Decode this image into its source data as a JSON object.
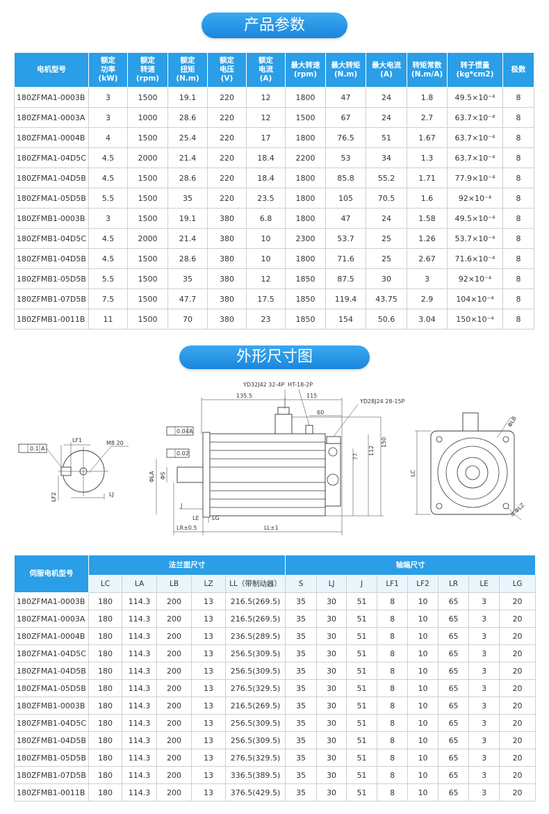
{
  "section1": {
    "title": "产品参数"
  },
  "table1": {
    "headers": [
      "电机型号",
      "额定\n功率\n(kW)",
      "额定\n转速\n(rpm)",
      "额定\n扭矩\n(N.m)",
      "额定\n电压\n(V)",
      "额定\n电流\n(A)",
      "最大转速\n(rpm)",
      "最大转矩\n(N.m)",
      "最大电流\n(A)",
      "转矩常数\n(N.m/A)",
      "转子惯量\n(kg*cm2)",
      "极数"
    ],
    "rows": [
      [
        "180ZFMA1-0003B",
        "3",
        "1500",
        "19.1",
        "220",
        "12",
        "1800",
        "47",
        "24",
        "1.8",
        "49.5×10⁻⁴",
        "8"
      ],
      [
        "180ZFMA1-0003A",
        "3",
        "1000",
        "28.6",
        "220",
        "12",
        "1500",
        "67",
        "24",
        "2.7",
        "63.7×10⁻⁴",
        "8"
      ],
      [
        "180ZFMA1-0004B",
        "4",
        "1500",
        "25.4",
        "220",
        "17",
        "1800",
        "76.5",
        "51",
        "1.67",
        "63.7×10⁻⁴",
        "8"
      ],
      [
        "180ZFMA1-04D5C",
        "4.5",
        "2000",
        "21.4",
        "220",
        "18.4",
        "2200",
        "53",
        "34",
        "1.3",
        "63.7×10⁻⁴",
        "8"
      ],
      [
        "180ZFMA1-04D5B",
        "4.5",
        "1500",
        "28.6",
        "220",
        "18.4",
        "1800",
        "85.8",
        "55.2",
        "1.71",
        "77.9×10⁻⁴",
        "8"
      ],
      [
        "180ZFMA1-05D5B",
        "5.5",
        "1500",
        "35",
        "220",
        "23.5",
        "1800",
        "105",
        "70.5",
        "1.6",
        "92×10⁻⁴",
        "8"
      ],
      [
        "180ZFMB1-0003B",
        "3",
        "1500",
        "19.1",
        "380",
        "6.8",
        "1800",
        "47",
        "24",
        "1.58",
        "49.5×10⁻⁴",
        "8"
      ],
      [
        "180ZFMB1-04D5C",
        "4.5",
        "2000",
        "21.4",
        "380",
        "10",
        "2300",
        "53.7",
        "25",
        "1.26",
        "53.7×10⁻⁴",
        "8"
      ],
      [
        "180ZFMB1-04D5B",
        "4.5",
        "1500",
        "28.6",
        "380",
        "10",
        "1800",
        "71.6",
        "25",
        "2.67",
        "71.6×10⁻⁴",
        "8"
      ],
      [
        "180ZFMB1-05D5B",
        "5.5",
        "1500",
        "35",
        "380",
        "12",
        "1850",
        "87.5",
        "30",
        "3",
        "92×10⁻⁴",
        "8"
      ],
      [
        "180ZFMB1-07D5B",
        "7.5",
        "1500",
        "47.7",
        "380",
        "17.5",
        "1850",
        "119.4",
        "43.75",
        "2.9",
        "104×10⁻⁴",
        "8"
      ],
      [
        "180ZFMB1-0011B",
        "11",
        "1500",
        "70",
        "380",
        "23",
        "1850",
        "154",
        "50.6",
        "3.04",
        "150×10⁻⁴",
        "8"
      ]
    ]
  },
  "section2": {
    "title": "外形尺寸图"
  },
  "drawing": {
    "labels": [
      "YD32J42 32-4P",
      "HT-18-2P",
      "YD28J24 28-15P",
      "135.5",
      "115",
      "60",
      "150",
      "112",
      "77",
      "LE",
      "LG",
      "LR±0.5",
      "LL±1",
      "J",
      "ΦLA",
      "ΦS",
      "0.04",
      "A",
      "0.02",
      "LF1",
      "M8 20",
      "0.1",
      "A",
      "LF2",
      "LJ",
      "ΦLB",
      "LC",
      "4-ΦLZ"
    ]
  },
  "table2": {
    "model_header": "伺服电机型号",
    "groups": [
      "法兰面尺寸",
      "轴端尺寸"
    ],
    "headers": [
      "LC",
      "LA",
      "LB",
      "LZ",
      "LL（带制动器）",
      "S",
      "LJ",
      "J",
      "LF1",
      "LF2",
      "LR",
      "LE",
      "LG"
    ],
    "rows": [
      [
        "180ZFMA1-0003B",
        "180",
        "114.3",
        "200",
        "13",
        "216.5(269.5)",
        "35",
        "30",
        "51",
        "8",
        "10",
        "65",
        "3",
        "20"
      ],
      [
        "180ZFMA1-0003A",
        "180",
        "114.3",
        "200",
        "13",
        "216.5(269.5)",
        "35",
        "30",
        "51",
        "8",
        "10",
        "65",
        "3",
        "20"
      ],
      [
        "180ZFMA1-0004B",
        "180",
        "114.3",
        "200",
        "13",
        "236.5(289.5)",
        "35",
        "30",
        "51",
        "8",
        "10",
        "65",
        "3",
        "20"
      ],
      [
        "180ZFMA1-04D5C",
        "180",
        "114.3",
        "200",
        "13",
        "256.5(309.5)",
        "35",
        "30",
        "51",
        "8",
        "10",
        "65",
        "3",
        "20"
      ],
      [
        "180ZFMA1-04D5B",
        "180",
        "114.3",
        "200",
        "13",
        "256.5(309.5)",
        "35",
        "30",
        "51",
        "8",
        "10",
        "65",
        "3",
        "20"
      ],
      [
        "180ZFMA1-05D5B",
        "180",
        "114.3",
        "200",
        "13",
        "276.5(329.5)",
        "35",
        "30",
        "51",
        "8",
        "10",
        "65",
        "3",
        "20"
      ],
      [
        "180ZFMB1-0003B",
        "180",
        "114.3",
        "200",
        "13",
        "216.5(269.5)",
        "35",
        "30",
        "51",
        "8",
        "10",
        "65",
        "3",
        "20"
      ],
      [
        "180ZFMB1-04D5C",
        "180",
        "114.3",
        "200",
        "13",
        "256.5(309.5)",
        "35",
        "30",
        "51",
        "8",
        "10",
        "65",
        "3",
        "20"
      ],
      [
        "180ZFMB1-04D5B",
        "180",
        "114.3",
        "200",
        "13",
        "256.5(309.5)",
        "35",
        "30",
        "51",
        "8",
        "10",
        "65",
        "3",
        "20"
      ],
      [
        "180ZFMB1-05D5B",
        "180",
        "114.3",
        "200",
        "13",
        "276.5(329.5)",
        "35",
        "30",
        "51",
        "8",
        "10",
        "65",
        "3",
        "20"
      ],
      [
        "180ZFMB1-07D5B",
        "180",
        "114.3",
        "200",
        "13",
        "336.5(389.5)",
        "35",
        "30",
        "51",
        "8",
        "10",
        "65",
        "3",
        "20"
      ],
      [
        "180ZFMB1-0011B",
        "180",
        "114.3",
        "200",
        "13",
        "376.5(429.5)",
        "35",
        "30",
        "51",
        "8",
        "10",
        "65",
        "3",
        "20"
      ]
    ]
  }
}
